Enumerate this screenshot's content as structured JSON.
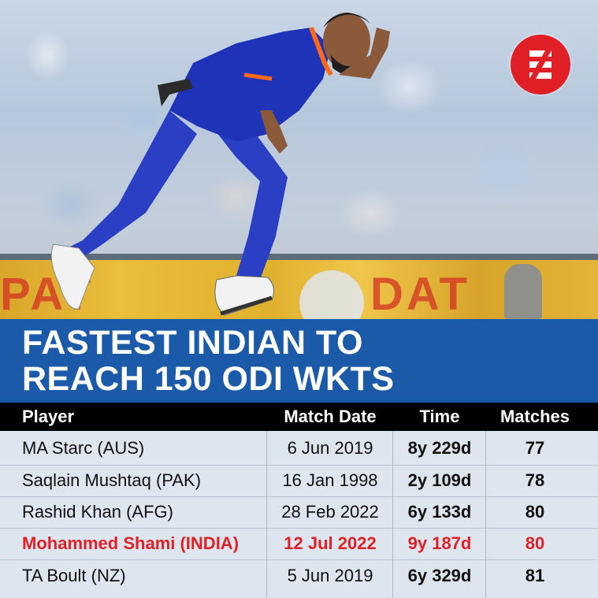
{
  "photo": {
    "board_text_left": "PAT",
    "board_text_right": "DAT",
    "logo_icon": "indian-express-logo"
  },
  "headline": {
    "line1": "FASTEST INDIAN TO",
    "line2": "REACH 150 ODI WKTS"
  },
  "table": {
    "headers": {
      "player": "Player",
      "match_date": "Match Date",
      "time": "Time",
      "matches": "Matches"
    },
    "rows": [
      {
        "player": "MA Starc (AUS)",
        "match_date": "6 Jun 2019",
        "time": "8y 229d",
        "matches": "77",
        "highlight": false
      },
      {
        "player": "Saqlain Mushtaq (PAK)",
        "match_date": "16 Jan 1998",
        "time": "2y 109d",
        "matches": "78",
        "highlight": false
      },
      {
        "player": "Rashid Khan (AFG)",
        "match_date": "28 Feb 2022",
        "time": "6y 133d",
        "matches": "80",
        "highlight": false
      },
      {
        "player": "Mohammed Shami (INDIA)",
        "match_date": "12 Jul 2022",
        "time": "9y 187d",
        "matches": "80",
        "highlight": true
      },
      {
        "player": "TA Boult (NZ)",
        "match_date": "5 Jun 2019",
        "time": "6y 329d",
        "matches": "81",
        "highlight": false
      }
    ]
  },
  "colors": {
    "headline_bg": "#1b5aa8",
    "header_bg": "#000000",
    "highlight_text": "#e11f26",
    "logo_bg": "#e11f26"
  }
}
